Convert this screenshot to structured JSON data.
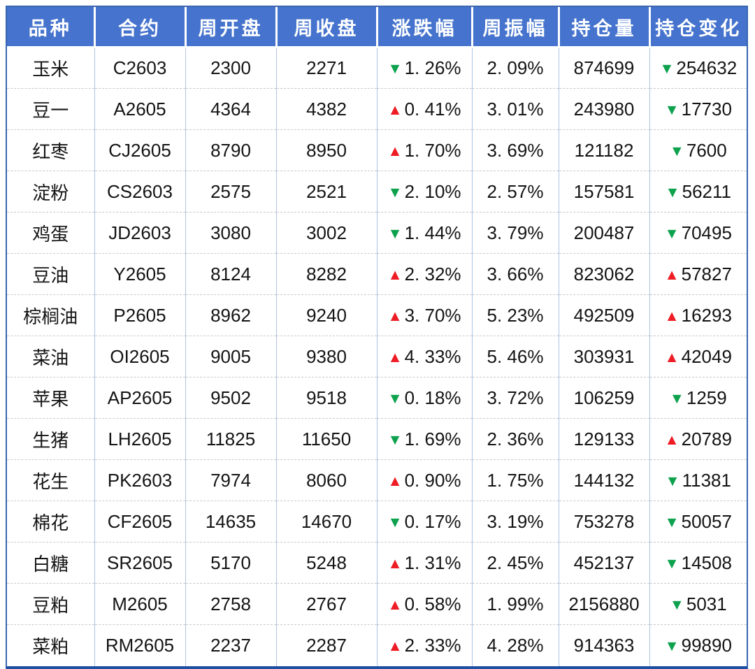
{
  "colors": {
    "header_bg": "#4573CD",
    "header_text": "#FFFFFF",
    "up_arrow": "#EE1C25",
    "down_arrow": "#0EA24E",
    "outer_border": "#3A66B0",
    "bottom_border": "#1E4FA0",
    "column_divider": "#ADC3E7",
    "row_divider": "#C9C9C9"
  },
  "icons": {
    "up": "▲",
    "down": "▼"
  },
  "chart_data": {
    "type": "table",
    "columns": [
      "品种",
      "合约",
      "周开盘",
      "周收盘",
      "涨跌幅",
      "周振幅",
      "持仓量",
      "持仓变化"
    ],
    "rows": [
      {
        "variety": "玉米",
        "contract": "C2603",
        "week_open": "2300",
        "week_close": "2271",
        "change_pct": "1. 26%",
        "change_dir": "down",
        "amplitude_pct": "2. 09%",
        "open_interest": "874699",
        "oi_change": "254632",
        "oi_change_dir": "down"
      },
      {
        "variety": "豆一",
        "contract": "A2605",
        "week_open": "4364",
        "week_close": "4382",
        "change_pct": "0. 41%",
        "change_dir": "up",
        "amplitude_pct": "3. 01%",
        "open_interest": "243980",
        "oi_change": "17730",
        "oi_change_dir": "down"
      },
      {
        "variety": "红枣",
        "contract": "CJ2605",
        "week_open": "8790",
        "week_close": "8950",
        "change_pct": "1. 70%",
        "change_dir": "up",
        "amplitude_pct": "3. 69%",
        "open_interest": "121182",
        "oi_change": "7600",
        "oi_change_dir": "down"
      },
      {
        "variety": "淀粉",
        "contract": "CS2603",
        "week_open": "2575",
        "week_close": "2521",
        "change_pct": "2. 10%",
        "change_dir": "down",
        "amplitude_pct": "2. 57%",
        "open_interest": "157581",
        "oi_change": "56211",
        "oi_change_dir": "down"
      },
      {
        "variety": "鸡蛋",
        "contract": "JD2603",
        "week_open": "3080",
        "week_close": "3002",
        "change_pct": "1. 44%",
        "change_dir": "down",
        "amplitude_pct": "3. 79%",
        "open_interest": "200487",
        "oi_change": "70495",
        "oi_change_dir": "down"
      },
      {
        "variety": "豆油",
        "contract": "Y2605",
        "week_open": "8124",
        "week_close": "8282",
        "change_pct": "2. 32%",
        "change_dir": "up",
        "amplitude_pct": "3. 66%",
        "open_interest": "823062",
        "oi_change": "57827",
        "oi_change_dir": "up"
      },
      {
        "variety": "棕榈油",
        "contract": "P2605",
        "week_open": "8962",
        "week_close": "9240",
        "change_pct": "3. 70%",
        "change_dir": "up",
        "amplitude_pct": "5. 23%",
        "open_interest": "492509",
        "oi_change": "16293",
        "oi_change_dir": "up"
      },
      {
        "variety": "菜油",
        "contract": "OI2605",
        "week_open": "9005",
        "week_close": "9380",
        "change_pct": "4. 33%",
        "change_dir": "up",
        "amplitude_pct": "5. 46%",
        "open_interest": "303931",
        "oi_change": "42049",
        "oi_change_dir": "up"
      },
      {
        "variety": "苹果",
        "contract": "AP2605",
        "week_open": "9502",
        "week_close": "9518",
        "change_pct": "0. 18%",
        "change_dir": "down",
        "amplitude_pct": "3. 72%",
        "open_interest": "106259",
        "oi_change": "1259",
        "oi_change_dir": "down"
      },
      {
        "variety": "生猪",
        "contract": "LH2605",
        "week_open": "11825",
        "week_close": "11650",
        "change_pct": "1. 69%",
        "change_dir": "down",
        "amplitude_pct": "2. 36%",
        "open_interest": "129133",
        "oi_change": "20789",
        "oi_change_dir": "up"
      },
      {
        "variety": "花生",
        "contract": "PK2603",
        "week_open": "7974",
        "week_close": "8060",
        "change_pct": "0. 90%",
        "change_dir": "up",
        "amplitude_pct": "1. 75%",
        "open_interest": "144132",
        "oi_change": "11381",
        "oi_change_dir": "down"
      },
      {
        "variety": "棉花",
        "contract": "CF2605",
        "week_open": "14635",
        "week_close": "14670",
        "change_pct": "0. 17%",
        "change_dir": "down",
        "amplitude_pct": "3. 19%",
        "open_interest": "753278",
        "oi_change": "50057",
        "oi_change_dir": "down"
      },
      {
        "variety": "白糖",
        "contract": "SR2605",
        "week_open": "5170",
        "week_close": "5248",
        "change_pct": "1. 31%",
        "change_dir": "up",
        "amplitude_pct": "2. 45%",
        "open_interest": "452137",
        "oi_change": "14508",
        "oi_change_dir": "down"
      },
      {
        "variety": "豆粕",
        "contract": "M2605",
        "week_open": "2758",
        "week_close": "2767",
        "change_pct": "0. 58%",
        "change_dir": "up",
        "amplitude_pct": "1. 99%",
        "open_interest": "2156880",
        "oi_change": "5031",
        "oi_change_dir": "down"
      },
      {
        "variety": "菜粕",
        "contract": "RM2605",
        "week_open": "2237",
        "week_close": "2287",
        "change_pct": "2. 33%",
        "change_dir": "up",
        "amplitude_pct": "4. 28%",
        "open_interest": "914363",
        "oi_change": "99890",
        "oi_change_dir": "down"
      }
    ]
  }
}
